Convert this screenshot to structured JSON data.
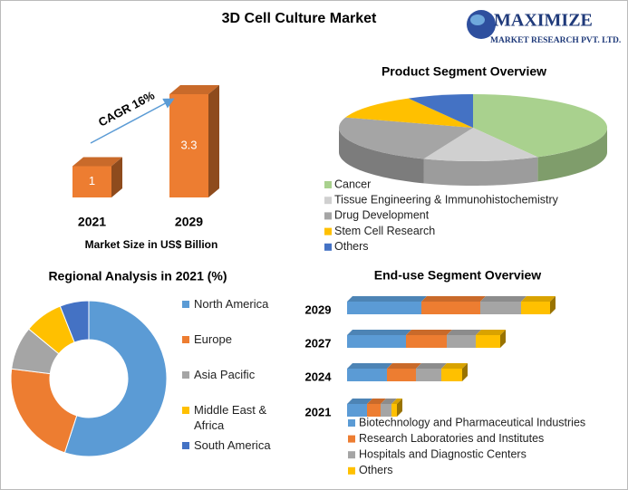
{
  "title": "3D Cell Culture Market",
  "logo": {
    "name": "MAXIMIZE",
    "tagline": "MARKET RESEARCH PVT. LTD."
  },
  "chart_data": [
    {
      "type": "bar3d",
      "x_label": "Market Size in US$ Billion",
      "annotation": "CAGR 16%",
      "categories": [
        "2021",
        "2029"
      ],
      "values": [
        1,
        3.3
      ],
      "value_labels": [
        "1",
        "3.3"
      ],
      "color": "#ed7d31"
    },
    {
      "type": "pie3d",
      "title": "Product Segment Overview",
      "categories": [
        "Cancer",
        "Tissue Engineering & Immunohistochemistry",
        "Drug Development",
        "Stem Cell Research",
        "Others"
      ],
      "values": [
        42,
        14,
        24,
        12,
        8
      ],
      "colors": [
        "#a9d18e",
        "#d0d0d0",
        "#a5a5a5",
        "#ffc000",
        "#4472c4"
      ]
    },
    {
      "type": "donut",
      "title": "Regional Analysis in 2021 (%)",
      "categories": [
        "North America",
        "Europe",
        "Asia Pacific",
        "Middle East & Africa",
        "South America"
      ],
      "values": [
        55,
        22,
        9,
        8,
        6
      ],
      "colors": [
        "#5b9bd5",
        "#ed7d31",
        "#a5a5a5",
        "#ffc000",
        "#4472c4"
      ]
    },
    {
      "type": "hbar_stacked3d",
      "title": "End-use Segment Overview",
      "categories": [
        "2029",
        "2027",
        "2024",
        "2021"
      ],
      "series": [
        {
          "name": "Biotechnology and Pharmaceutical Industries",
          "color": "#5b9bd5",
          "values": [
            0.82,
            0.65,
            0.44,
            0.22
          ]
        },
        {
          "name": "Research Laboratories and Institutes",
          "color": "#ed7d31",
          "values": [
            0.65,
            0.45,
            0.32,
            0.15
          ]
        },
        {
          "name": "Hospitals and Diagnostic Centers",
          "color": "#a5a5a5",
          "values": [
            0.45,
            0.32,
            0.28,
            0.12
          ]
        },
        {
          "name": "Others",
          "color": "#ffc000",
          "values": [
            0.32,
            0.27,
            0.23,
            0.06
          ]
        }
      ]
    }
  ]
}
